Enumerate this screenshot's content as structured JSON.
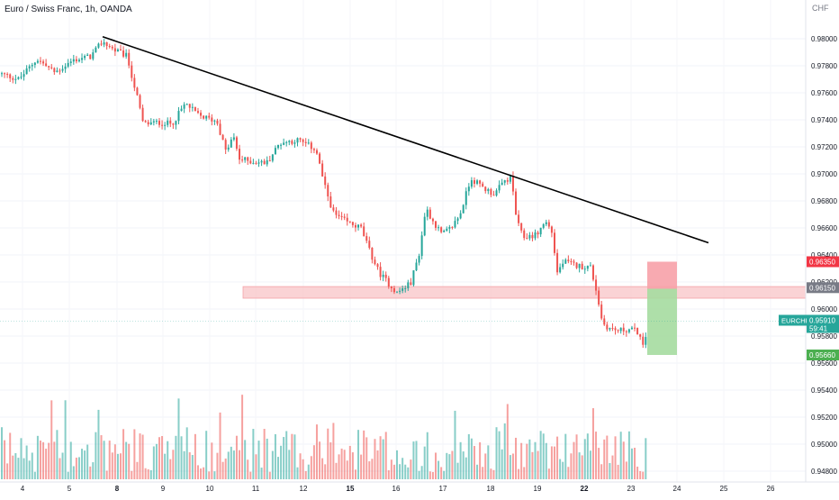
{
  "header": {
    "title": "Euro / Swiss Franc, 1h, OANDA",
    "currency": "CHF"
  },
  "colors": {
    "up": "#26a69a",
    "down": "#ef5350",
    "trendline": "#000000",
    "zone_fill": "#f9c9cb",
    "stop_fill": "#f7a1a8",
    "target_fill": "#a5dca0",
    "price_label": "#26a69a",
    "stop_label": "#f23645",
    "target_label": "#4caf50",
    "zone_label": "#787b86"
  },
  "chart_data": {
    "type": "candlestick",
    "symbol": "EURCHF",
    "title": "Euro / Swiss Franc, 1h, OANDA",
    "y_axis_ticks": [
      "0.98000",
      "0.97800",
      "0.97600",
      "0.97400",
      "0.97200",
      "0.97000",
      "0.96800",
      "0.96600",
      "0.96400",
      "0.96200",
      "0.96000",
      "0.95800",
      "0.95600",
      "0.95400",
      "0.95200",
      "0.95000",
      "0.94800"
    ],
    "ylim": [
      0.9471,
      0.9836
    ],
    "x_axis_ticks": [
      {
        "label": "4",
        "bold": false
      },
      {
        "label": "5",
        "bold": false
      },
      {
        "label": "8",
        "bold": true
      },
      {
        "label": "9",
        "bold": false
      },
      {
        "label": "10",
        "bold": false
      },
      {
        "label": "11",
        "bold": false
      },
      {
        "label": "12",
        "bold": false
      },
      {
        "label": "15",
        "bold": true
      },
      {
        "label": "16",
        "bold": false
      },
      {
        "label": "17",
        "bold": false
      },
      {
        "label": "18",
        "bold": false
      },
      {
        "label": "19",
        "bold": false
      },
      {
        "label": "22",
        "bold": true
      },
      {
        "label": "23",
        "bold": false
      },
      {
        "label": "24",
        "bold": false
      },
      {
        "label": "25",
        "bold": false
      },
      {
        "label": "26",
        "bold": false
      }
    ],
    "price_path": [
      [
        0,
        0.9774
      ],
      [
        20,
        0.977
      ],
      [
        40,
        0.9785
      ],
      [
        60,
        0.9775
      ],
      [
        80,
        0.9784
      ],
      [
        100,
        0.9787
      ],
      [
        113,
        0.9798
      ],
      [
        125,
        0.9792
      ],
      [
        140,
        0.9787
      ],
      [
        152,
        0.9755
      ],
      [
        158,
        0.9737
      ],
      [
        175,
        0.9738
      ],
      [
        190,
        0.9737
      ],
      [
        205,
        0.9752
      ],
      [
        220,
        0.9743
      ],
      [
        240,
        0.9739
      ],
      [
        250,
        0.9716
      ],
      [
        258,
        0.9728
      ],
      [
        265,
        0.9711
      ],
      [
        280,
        0.9709
      ],
      [
        295,
        0.9708
      ],
      [
        310,
        0.9723
      ],
      [
        330,
        0.9725
      ],
      [
        350,
        0.9718
      ],
      [
        360,
        0.969
      ],
      [
        370,
        0.967
      ],
      [
        385,
        0.9664
      ],
      [
        400,
        0.966
      ],
      [
        410,
        0.9642
      ],
      [
        420,
        0.9627
      ],
      [
        440,
        0.9612
      ],
      [
        455,
        0.9619
      ],
      [
        465,
        0.9642
      ],
      [
        472,
        0.9675
      ],
      [
        480,
        0.9665
      ],
      [
        490,
        0.9655
      ],
      [
        500,
        0.966
      ],
      [
        510,
        0.967
      ],
      [
        522,
        0.9697
      ],
      [
        535,
        0.969
      ],
      [
        548,
        0.9685
      ],
      [
        560,
        0.9695
      ],
      [
        567,
        0.9697
      ],
      [
        573,
        0.9665
      ],
      [
        580,
        0.9653
      ],
      [
        595,
        0.9655
      ],
      [
        605,
        0.9665
      ],
      [
        612,
        0.9657
      ],
      [
        618,
        0.9627
      ],
      [
        625,
        0.9635
      ],
      [
        640,
        0.9632
      ],
      [
        655,
        0.9631
      ],
      [
        662,
        0.9612
      ],
      [
        668,
        0.959
      ],
      [
        675,
        0.9586
      ],
      [
        685,
        0.9584
      ],
      [
        700,
        0.9585
      ],
      [
        708,
        0.9583
      ],
      [
        714,
        0.957
      ],
      [
        719,
        0.9591
      ]
    ],
    "last_x": 719,
    "trendline": {
      "start": [
        114,
        0.98015
      ],
      "end": [
        787,
        0.9649
      ]
    },
    "resistance_zone": {
      "from_x": 270,
      "price_top": 0.96166,
      "price_bottom": 0.9608,
      "label": "0.96150"
    },
    "trade_box": {
      "from_x": 719,
      "to_x": 752,
      "entry": 0.9615,
      "stop": 0.9635,
      "target": 0.9566
    },
    "price_labels": [
      {
        "name": "stop",
        "value": "0.96350"
      },
      {
        "name": "zone",
        "value": "0.96150"
      },
      {
        "name": "current",
        "symbol": "EURCHF",
        "value": "0.95910",
        "countdown": "59:41"
      },
      {
        "name": "target",
        "value": "0.95660"
      }
    ],
    "current_price": 0.9591,
    "volume": {
      "note": "relative bars, 0-1",
      "max_height": 1
    }
  }
}
